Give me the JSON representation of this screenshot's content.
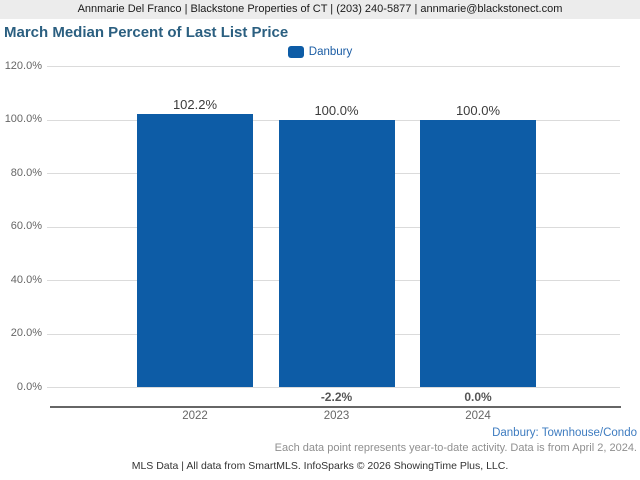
{
  "header": {
    "contact_line": "Annmarie Del Franco | Blackstone Properties of CT | (203) 240-5877 | annmarie@blackstonect.com"
  },
  "title": "March Median Percent of Last List Price",
  "legend": {
    "label": "Danbury",
    "swatch_color": "#0d5ca6"
  },
  "chart_data": {
    "type": "bar",
    "title": "March Median Percent of Last List Price",
    "categories": [
      "2022",
      "2023",
      "2024"
    ],
    "series": [
      {
        "name": "Danbury",
        "values": [
          102.2,
          100.0,
          100.0
        ]
      }
    ],
    "value_labels": [
      "102.2%",
      "100.0%",
      "100.0%"
    ],
    "change_labels": [
      "",
      "-2.2%",
      "0.0%"
    ],
    "y_ticks": [
      "120.0%",
      "100.0%",
      "80.0%",
      "60.0%",
      "40.0%",
      "20.0%",
      "0.0%"
    ],
    "ylim": [
      0,
      120
    ],
    "xlabel": "",
    "ylabel": "",
    "bar_color": "#0d5ca6",
    "grid": true,
    "legend_position": "top"
  },
  "footnotes": {
    "series_note": "Danbury: Townhouse/Condo",
    "data_note": "Each data point represents year-to-date activity. Data is from April 2, 2024.",
    "credit": "MLS Data | All data from SmartMLS. InfoSparks © 2026 ShowingTime Plus, LLC."
  }
}
